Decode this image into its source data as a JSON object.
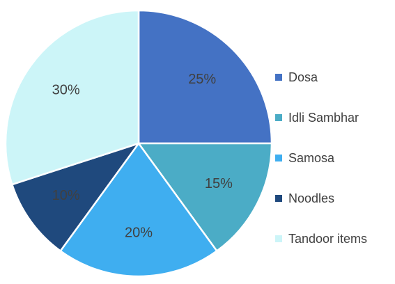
{
  "chart_data": {
    "type": "pie",
    "title": "",
    "categories": [
      "Dosa",
      "Idli Sambhar",
      "Samosa",
      "Noodles",
      "Tandoor items"
    ],
    "values": [
      25,
      15,
      20,
      10,
      30
    ],
    "value_labels": [
      "25%",
      "15%",
      "20%",
      "10%",
      "30%"
    ],
    "colors": [
      "#4472C4",
      "#4BACC6",
      "#3FAEF0",
      "#1F497D",
      "#CCF5F8"
    ],
    "legend_position": "right",
    "start_angle": "12 o'clock",
    "direction": "clockwise"
  }
}
